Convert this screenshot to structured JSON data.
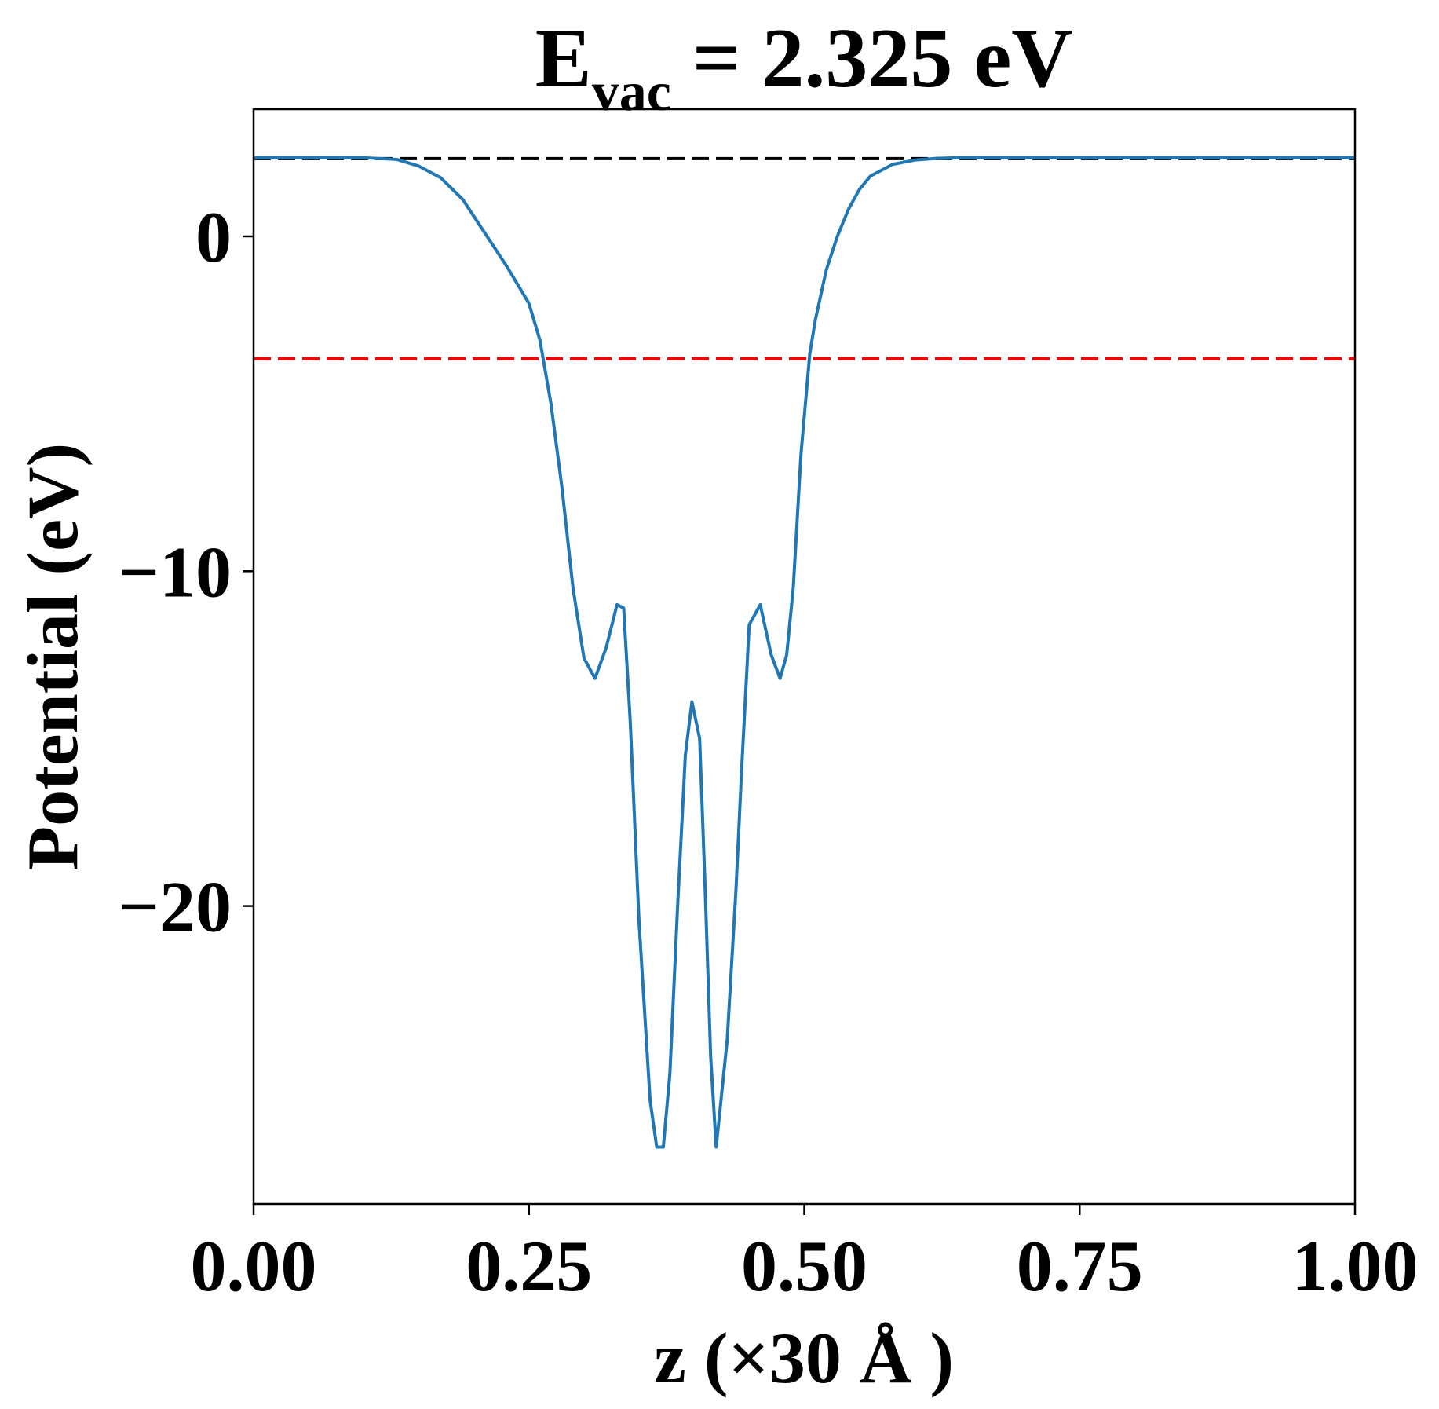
{
  "chart_data": {
    "type": "line",
    "title": "E",
    "title_sub": "vac",
    "title_suffix": " = 2.325 eV",
    "xlabel": "z (×30 Å )",
    "ylabel": "Potential (eV)",
    "xlim": [
      0.0,
      1.0
    ],
    "ylim": [
      -28.9,
      3.8
    ],
    "xticks": [
      0.0,
      0.25,
      0.5,
      0.75,
      1.0
    ],
    "xtick_labels": [
      "0.00",
      "0.25",
      "0.50",
      "0.75",
      "1.00"
    ],
    "yticks": [
      0,
      -10,
      -20
    ],
    "ytick_labels": [
      "0",
      "−10",
      "−20"
    ],
    "grid": false,
    "series": [
      {
        "color": "#1f77b4",
        "style": "solid",
        "x": [
          0.0,
          0.1,
          0.13,
          0.15,
          0.17,
          0.19,
          0.21,
          0.23,
          0.25,
          0.26,
          0.27,
          0.28,
          0.29,
          0.3,
          0.31,
          0.32,
          0.33,
          0.336,
          0.342,
          0.35,
          0.36,
          0.366,
          0.372,
          0.378,
          0.385,
          0.392,
          0.398,
          0.405,
          0.41,
          0.415,
          0.42,
          0.43,
          0.438,
          0.443,
          0.45,
          0.46,
          0.47,
          0.478,
          0.484,
          0.49,
          0.497,
          0.505,
          0.51,
          0.52,
          0.53,
          0.54,
          0.55,
          0.56,
          0.58,
          0.6,
          0.62,
          0.64,
          0.66,
          0.68,
          0.7,
          0.75,
          1.0
        ],
        "y": [
          2.35,
          2.35,
          2.3,
          2.1,
          1.75,
          1.1,
          0.1,
          -0.9,
          -2.0,
          -3.1,
          -5.0,
          -7.5,
          -10.5,
          -12.6,
          -13.2,
          -12.3,
          -11.0,
          -11.1,
          -14.5,
          -20.5,
          -25.8,
          -27.2,
          -27.2,
          -25.0,
          -20.0,
          -15.5,
          -13.9,
          -15.0,
          -19.5,
          -24.5,
          -27.2,
          -24.0,
          -19.5,
          -16.0,
          -11.6,
          -11.0,
          -12.5,
          -13.2,
          -12.5,
          -10.5,
          -6.5,
          -3.5,
          -2.5,
          -1.0,
          0.0,
          0.8,
          1.4,
          1.8,
          2.15,
          2.28,
          2.33,
          2.35,
          2.35,
          2.35,
          2.35,
          2.35,
          2.35
        ]
      },
      {
        "color": "#000000",
        "style": "dashed",
        "x": [
          0.0,
          1.0
        ],
        "y": [
          2.325,
          2.325
        ]
      },
      {
        "color": "#ff0000",
        "style": "dashed",
        "x": [
          0.0,
          1.0
        ],
        "y": [
          -3.65,
          -3.65
        ]
      }
    ]
  }
}
